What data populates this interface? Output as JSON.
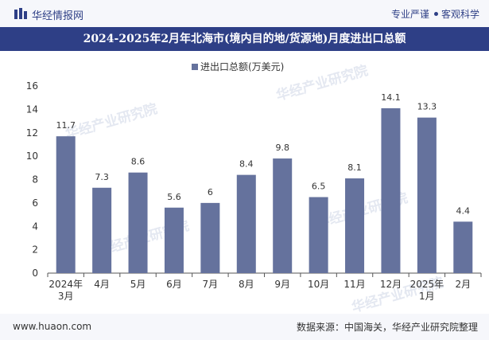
{
  "header": {
    "brand": "华经情报网",
    "tagline_1": "专业严谨",
    "tagline_2": "客观科学"
  },
  "title": "2024-2025年2月年北海市(境内目的地/货源地)月度进出口总额",
  "watermark": "华经产业研究院",
  "footer": {
    "website": "www.huaon.com",
    "source": "数据来源：中国海关，华经产业研究院整理"
  },
  "colors": {
    "bar": "#65729d",
    "title_bg": "#2e3f86"
  },
  "chart_data": {
    "type": "bar",
    "title": "2024-2025年2月年北海市(境内目的地/货源地)月度进出口总额",
    "legend": "进出口总额(万美元)",
    "legend_position": "top-center",
    "categories": [
      "2024年3月",
      "4月",
      "5月",
      "6月",
      "7月",
      "8月",
      "9月",
      "10月",
      "11月",
      "12月",
      "2025年1月",
      "2月"
    ],
    "values": [
      11.7,
      7.3,
      8.6,
      5.6,
      6,
      8.4,
      9.8,
      6.5,
      8.1,
      14.1,
      13.3,
      4.4
    ],
    "value_labels": [
      "11.7",
      "7.3",
      "8.6",
      "5.6",
      "6",
      "8.4",
      "9.8",
      "6.5",
      "8.1",
      "14.1",
      "13.3",
      "4.4"
    ],
    "ylim": [
      0,
      16
    ],
    "yticks": [
      0,
      2,
      4,
      6,
      8,
      10,
      12,
      14,
      16
    ],
    "grid": false
  }
}
